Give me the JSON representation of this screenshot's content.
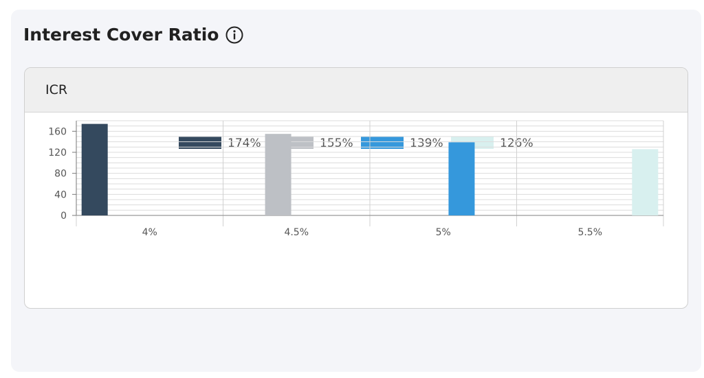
{
  "panel": {
    "title": "Interest Cover Ratio",
    "info_icon": "info-circle-icon"
  },
  "card": {
    "header": "ICR"
  },
  "chart_data": {
    "type": "bar",
    "categories": [
      "4%",
      "4.5%",
      "5%",
      "5.5%"
    ],
    "series": [
      {
        "name": "174%",
        "color": "#34495e",
        "values": [
          174,
          null,
          null,
          null
        ]
      },
      {
        "name": "155%",
        "color": "#bdc0c5",
        "values": [
          null,
          155,
          null,
          null
        ]
      },
      {
        "name": "139%",
        "color": "#3598dc",
        "values": [
          null,
          null,
          139,
          null
        ]
      },
      {
        "name": "126%",
        "color": "#d8f0ef",
        "values": [
          null,
          null,
          null,
          126
        ]
      }
    ],
    "y_ticks": [
      0,
      40,
      80,
      120,
      160
    ],
    "ylim": [
      0,
      180
    ],
    "grid": true,
    "legend_position": "top-center"
  }
}
